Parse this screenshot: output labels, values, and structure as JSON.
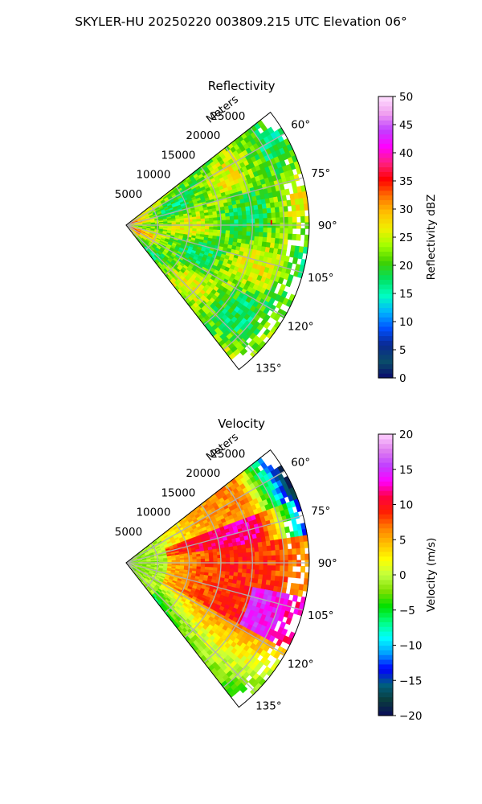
{
  "suptitle": "SKYLER-HU  20250220  003809.215 UTC Elevation 06°",
  "chart_data": [
    {
      "type": "heatmap",
      "projection": "polar-sector",
      "title": "Reflectivity",
      "range_label": "Meters",
      "theta_range_deg": [
        52,
        142
      ],
      "theta_ticks": [
        "60°",
        "75°",
        "90°",
        "105°",
        "120°",
        "135°"
      ],
      "theta_tick_values": [
        60,
        75,
        90,
        105,
        120,
        135
      ],
      "r_range": [
        0,
        29000
      ],
      "r_ticks": [
        "5000",
        "10000",
        "15000",
        "20000",
        "25000"
      ],
      "r_tick_values": [
        5000,
        10000,
        15000,
        20000,
        25000
      ],
      "grid": true,
      "colorbar": {
        "label": "Reflectivity dBZ",
        "range": [
          0,
          50
        ],
        "ticks": [
          "0",
          "5",
          "10",
          "15",
          "20",
          "25",
          "30",
          "35",
          "40",
          "45",
          "50"
        ],
        "tick_values": [
          0,
          5,
          10,
          15,
          20,
          25,
          30,
          35,
          40,
          45,
          50
        ],
        "colors": [
          "#0a0a6e",
          "#0a4c6a",
          "#0a2890",
          "#0050ff",
          "#00b4ff",
          "#00ffc0",
          "#00e060",
          "#40d000",
          "#a0ff00",
          "#f0f000",
          "#ffc000",
          "#ff7000",
          "#ff0000",
          "#ff2080",
          "#ff00ff",
          "#c040ff",
          "#f0a0f0",
          "#ffe0ff"
        ]
      },
      "field_description_values": {
        "typical_dbz": [
          20,
          30
        ],
        "near_radar_dbz": [
          27,
          33
        ],
        "isolated_max_dbz": 38
      }
    },
    {
      "type": "heatmap",
      "projection": "polar-sector",
      "title": "Velocity",
      "range_label": "Meters",
      "theta_range_deg": [
        52,
        142
      ],
      "theta_ticks": [
        "60°",
        "75°",
        "90°",
        "105°",
        "120°",
        "135°"
      ],
      "theta_tick_values": [
        60,
        75,
        90,
        105,
        120,
        135
      ],
      "r_range": [
        0,
        29000
      ],
      "r_ticks": [
        "5000",
        "10000",
        "15000",
        "20000",
        "25000"
      ],
      "r_tick_values": [
        5000,
        10000,
        15000,
        20000,
        25000
      ],
      "grid": true,
      "colorbar": {
        "label": "Velocity (m/s)",
        "range": [
          -20,
          20
        ],
        "ticks": [
          "−20",
          "−15",
          "−10",
          "−5",
          "0",
          "5",
          "10",
          "15",
          "20"
        ],
        "tick_values": [
          -20,
          -15,
          -10,
          -5,
          0,
          5,
          10,
          15,
          20
        ],
        "colors": [
          "#0a0a5a",
          "#0a3c3c",
          "#006080",
          "#0000ff",
          "#00a0ff",
          "#00ffff",
          "#00ff80",
          "#00e000",
          "#80e000",
          "#c0ff40",
          "#ffff00",
          "#ffc000",
          "#ff8000",
          "#ff2000",
          "#ff0040",
          "#ff00ff",
          "#c040ff",
          "#e080f0",
          "#ffd0ff"
        ]
      },
      "field_description_values": {
        "near_radar_ms": [
          -4,
          0
        ],
        "mid_range_ms": [
          5,
          10
        ],
        "far_60_80deg_ms": [
          -15,
          -10
        ],
        "far_100_115deg_ms": [
          10,
          15
        ]
      }
    }
  ]
}
